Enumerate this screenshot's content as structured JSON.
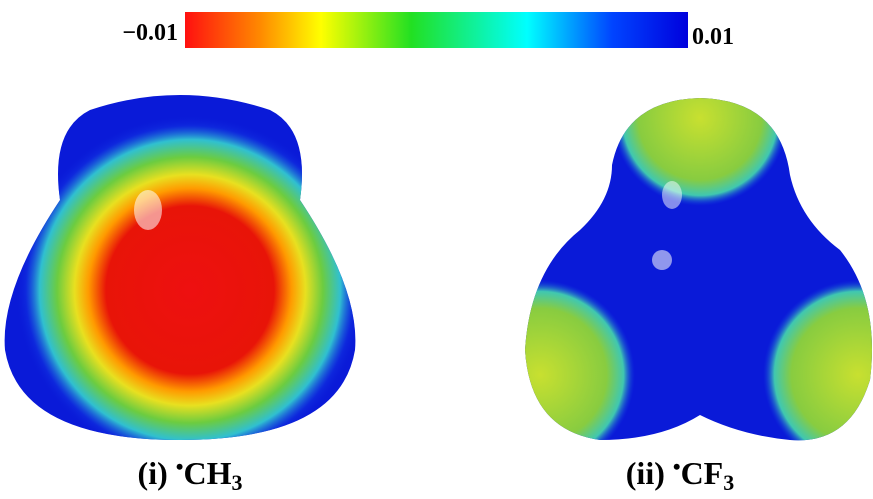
{
  "colorbar": {
    "min": {
      "value": -0.01,
      "label": "−0.01"
    },
    "max": 0.01
  },
  "panels": [
    {
      "tag": "(i)",
      "radical": "•",
      "formula": "CH",
      "subscript": "3"
    },
    {
      "tag": "(ii)",
      "radical": "•",
      "formula": "CF",
      "subscript": "3"
    }
  ]
}
